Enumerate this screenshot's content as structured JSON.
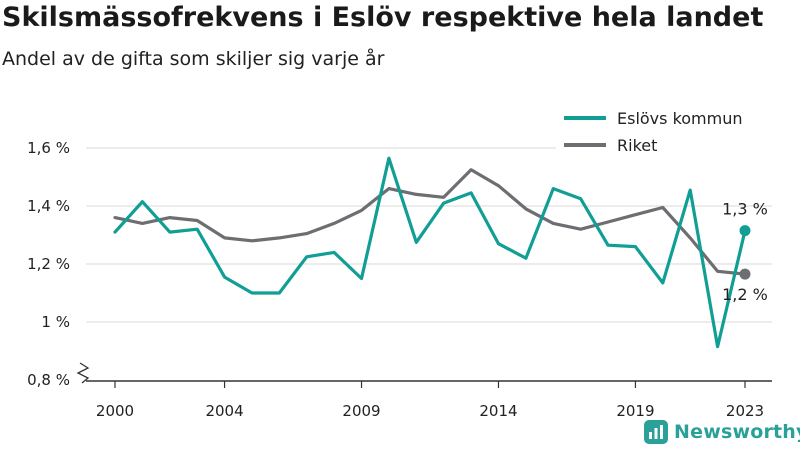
{
  "title": "Skilsmässofrekvens i Eslöv respektive hela landet",
  "subtitle": "Andel av de gifta som skiljer sig varje år",
  "brand": "Newsworthy",
  "colors": {
    "eslov": "#109e95",
    "riket": "#6d6d72",
    "grid": "#d8d8d8",
    "axis": "#333333",
    "brand": "#2aa198"
  },
  "chart_data": {
    "type": "line",
    "title": "Skilsmässofrekvens i Eslöv respektive hela landet",
    "subtitle": "Andel av de gifta som skiljer sig varje år",
    "x_ticks": [
      2000,
      2004,
      2009,
      2014,
      2019,
      2023
    ],
    "y_ticks": [
      {
        "value": 0.8,
        "label": "0,8 %"
      },
      {
        "value": 1.0,
        "label": "1 %"
      },
      {
        "value": 1.2,
        "label": "1,2 %"
      },
      {
        "value": 1.4,
        "label": "1,4 %"
      },
      {
        "value": 1.6,
        "label": "1,6 %"
      }
    ],
    "xlim": [
      1999,
      2024
    ],
    "ylim": [
      0.8,
      1.6
    ],
    "axis_break": true,
    "grid": true,
    "legend_position": "top-right",
    "x": [
      2000,
      2001,
      2002,
      2003,
      2004,
      2005,
      2006,
      2007,
      2008,
      2009,
      2010,
      2011,
      2012,
      2013,
      2014,
      2015,
      2016,
      2017,
      2018,
      2019,
      2020,
      2021,
      2022,
      2023
    ],
    "series": [
      {
        "name": "Eslövs kommun",
        "color": "#109e95",
        "values": [
          1.31,
          1.415,
          1.31,
          1.32,
          1.155,
          1.1,
          1.1,
          1.225,
          1.24,
          1.15,
          1.565,
          1.275,
          1.41,
          1.445,
          1.27,
          1.22,
          1.46,
          1.425,
          1.265,
          1.26,
          1.135,
          1.455,
          0.915,
          1.315
        ],
        "end_label": "1,3 %"
      },
      {
        "name": "Riket",
        "color": "#6d6d72",
        "values": [
          1.36,
          1.34,
          1.36,
          1.35,
          1.29,
          1.28,
          1.29,
          1.305,
          1.34,
          1.385,
          1.46,
          1.44,
          1.43,
          1.525,
          1.47,
          1.39,
          1.34,
          1.32,
          1.345,
          1.37,
          1.395,
          1.29,
          1.175,
          1.165
        ],
        "end_label": "1,2 %"
      }
    ]
  }
}
